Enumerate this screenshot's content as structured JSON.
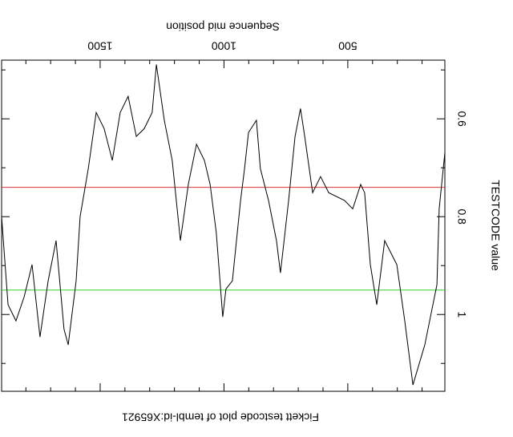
{
  "chart_data": {
    "type": "line",
    "title": "Fickett testcode plot of tembl-id:X65921",
    "x_label": "Sequence mid position",
    "y_label": "TESTCODE value",
    "xlim": [
      1898,
      108
    ],
    "ylim": [
      0.48,
      1.157
    ],
    "xticks": [
      500,
      1000,
      1500
    ],
    "xminorticks": [
      200,
      300,
      400,
      600,
      700,
      800,
      900,
      1100,
      1200,
      1300,
      1400,
      1600,
      1700,
      1800
    ],
    "yticks": [
      0.6,
      0.8,
      1.0
    ],
    "yminorticks": [
      0.5,
      0.7,
      0.9,
      1.1
    ],
    "reference_lines": [
      {
        "value": 0.74,
        "color": "#e03030"
      },
      {
        "value": 0.95,
        "color": "#30d030"
      }
    ],
    "series": [
      {
        "color": "#000000",
        "x": [
          108,
          131,
          140,
          189,
          237,
          270,
          302,
          351,
          383,
          409,
          432,
          448,
          480,
          513,
          577,
          610,
          642,
          674,
          691,
          713,
          739,
          772,
          788,
          820,
          853,
          869,
          901,
          917,
          933,
          966,
          992,
          1005,
          1031,
          1056,
          1079,
          1111,
          1144,
          1176,
          1209,
          1241,
          1273,
          1290,
          1322,
          1354,
          1387,
          1419,
          1451,
          1484,
          1516,
          1548,
          1581,
          1597,
          1629,
          1646,
          1678,
          1710,
          1743,
          1775,
          1807,
          1840,
          1872,
          1898
        ],
        "values": [
          0.669,
          0.784,
          0.939,
          1.062,
          1.144,
          1.013,
          0.898,
          0.849,
          0.98,
          0.898,
          0.751,
          0.734,
          0.784,
          0.767,
          0.751,
          0.718,
          0.751,
          0.636,
          0.579,
          0.636,
          0.767,
          0.915,
          0.849,
          0.767,
          0.702,
          0.603,
          0.628,
          0.702,
          0.767,
          0.931,
          0.948,
          1.005,
          0.833,
          0.734,
          0.685,
          0.652,
          0.734,
          0.849,
          0.685,
          0.603,
          0.489,
          0.587,
          0.62,
          0.636,
          0.554,
          0.587,
          0.685,
          0.62,
          0.587,
          0.702,
          0.8,
          0.931,
          1.062,
          1.03,
          0.849,
          0.931,
          1.046,
          0.898,
          0.964,
          1.013,
          0.98,
          0.8
        ]
      }
    ]
  }
}
